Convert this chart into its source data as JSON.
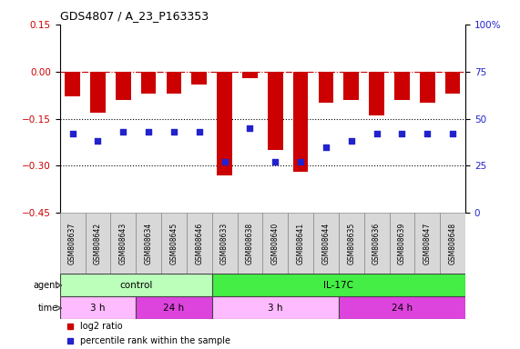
{
  "title": "GDS4807 / A_23_P163353",
  "samples": [
    "GSM808637",
    "GSM808642",
    "GSM808643",
    "GSM808634",
    "GSM808645",
    "GSM808646",
    "GSM808633",
    "GSM808638",
    "GSM808640",
    "GSM808641",
    "GSM808644",
    "GSM808635",
    "GSM808636",
    "GSM808639",
    "GSM808647",
    "GSM808648"
  ],
  "log2_ratio": [
    -0.08,
    -0.13,
    -0.09,
    -0.07,
    -0.07,
    -0.04,
    -0.33,
    -0.02,
    -0.25,
    -0.32,
    -0.1,
    -0.09,
    -0.14,
    -0.09,
    -0.1,
    -0.07
  ],
  "percentile_rank": [
    42,
    38,
    43,
    43,
    43,
    43,
    27,
    45,
    27,
    27,
    35,
    38,
    42,
    42,
    42,
    42
  ],
  "bar_color": "#cc0000",
  "dot_color": "#2222cc",
  "ylim_left": [
    -0.45,
    0.15
  ],
  "ylim_right": [
    0,
    100
  ],
  "yticks_left": [
    -0.45,
    -0.3,
    -0.15,
    0,
    0.15
  ],
  "yticks_right": [
    0,
    25,
    50,
    75,
    100
  ],
  "dotted_lines": [
    -0.15,
    -0.3
  ],
  "agent_groups": [
    {
      "label": "control",
      "start": 0,
      "end": 6,
      "color": "#bbffbb"
    },
    {
      "label": "IL-17C",
      "start": 6,
      "end": 16,
      "color": "#44ee44"
    }
  ],
  "time_groups": [
    {
      "label": "3 h",
      "start": 0,
      "end": 3,
      "color": "#ffbbff"
    },
    {
      "label": "24 h",
      "start": 3,
      "end": 6,
      "color": "#dd44dd"
    },
    {
      "label": "3 h",
      "start": 6,
      "end": 11,
      "color": "#ffbbff"
    },
    {
      "label": "24 h",
      "start": 11,
      "end": 16,
      "color": "#dd44dd"
    }
  ],
  "legend_items": [
    {
      "label": "log2 ratio",
      "color": "#cc0000"
    },
    {
      "label": "percentile rank within the sample",
      "color": "#2222cc"
    }
  ]
}
